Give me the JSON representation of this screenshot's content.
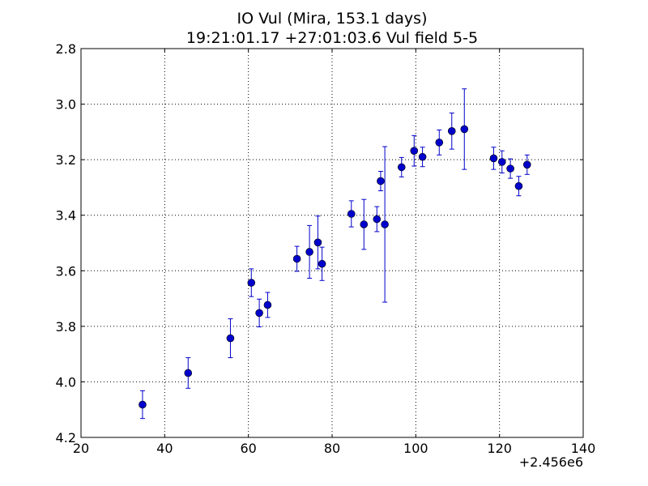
{
  "chart_data": {
    "type": "scatter",
    "title_line1": "IO Vul (Mira, 153.1 days)",
    "title_line2": "19:21:01.17 +27:01:03.6 Vul field 5-5",
    "xlabel": "",
    "ylabel": "",
    "x_offset_label": "+2.456e6",
    "xlim": [
      20,
      140
    ],
    "ylim": [
      4.2,
      2.8
    ],
    "y_inverted": true,
    "grid": true,
    "x_ticks": [
      20,
      40,
      60,
      80,
      100,
      120,
      140
    ],
    "y_ticks": [
      2.8,
      3.0,
      3.2,
      3.4,
      3.6,
      3.8,
      4.0,
      4.2
    ],
    "x_tick_labels": [
      "20",
      "40",
      "60",
      "80",
      "100",
      "120",
      "140"
    ],
    "y_tick_labels": [
      "2.8",
      "3.0",
      "3.2",
      "3.4",
      "3.6",
      "3.8",
      "4.0",
      "4.2"
    ],
    "marker_color": "#0000cc",
    "points": [
      {
        "x": 34.7,
        "y": 4.082,
        "err": 0.05
      },
      {
        "x": 45.6,
        "y": 3.968,
        "err": 0.055
      },
      {
        "x": 55.7,
        "y": 3.843,
        "err": 0.07
      },
      {
        "x": 60.7,
        "y": 3.643,
        "err": 0.05
      },
      {
        "x": 62.6,
        "y": 3.752,
        "err": 0.05
      },
      {
        "x": 64.6,
        "y": 3.723,
        "err": 0.045
      },
      {
        "x": 71.6,
        "y": 3.557,
        "err": 0.045
      },
      {
        "x": 74.6,
        "y": 3.532,
        "err": 0.095
      },
      {
        "x": 76.6,
        "y": 3.498,
        "err": 0.095
      },
      {
        "x": 77.6,
        "y": 3.575,
        "err": 0.06
      },
      {
        "x": 84.6,
        "y": 3.395,
        "err": 0.047
      },
      {
        "x": 87.6,
        "y": 3.433,
        "err": 0.09
      },
      {
        "x": 90.7,
        "y": 3.414,
        "err": 0.045
      },
      {
        "x": 91.6,
        "y": 3.277,
        "err": 0.035
      },
      {
        "x": 92.6,
        "y": 3.433,
        "err": 0.28
      },
      {
        "x": 96.6,
        "y": 3.227,
        "err": 0.035
      },
      {
        "x": 99.6,
        "y": 3.168,
        "err": 0.055
      },
      {
        "x": 101.6,
        "y": 3.19,
        "err": 0.035
      },
      {
        "x": 105.6,
        "y": 3.138,
        "err": 0.045
      },
      {
        "x": 108.6,
        "y": 3.097,
        "err": 0.065
      },
      {
        "x": 111.6,
        "y": 3.09,
        "err": 0.145
      },
      {
        "x": 118.6,
        "y": 3.195,
        "err": 0.04
      },
      {
        "x": 120.6,
        "y": 3.208,
        "err": 0.04
      },
      {
        "x": 122.6,
        "y": 3.232,
        "err": 0.035
      },
      {
        "x": 124.6,
        "y": 3.295,
        "err": 0.035
      },
      {
        "x": 126.6,
        "y": 3.218,
        "err": 0.035
      }
    ]
  }
}
